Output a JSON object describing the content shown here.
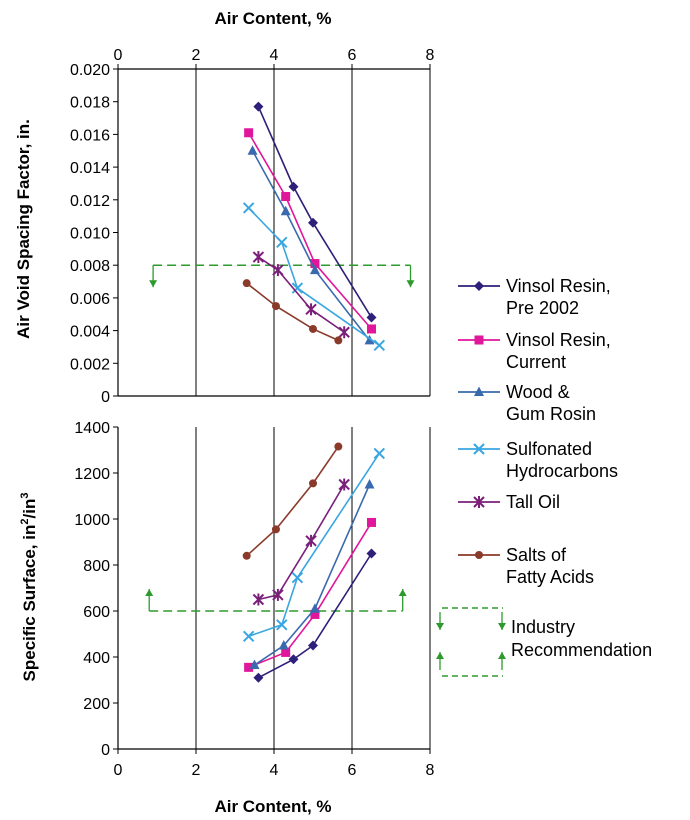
{
  "chart_data": [
    {
      "type": "line",
      "x_label_top": "Air Content, %",
      "ylabel": "Air Void Spacing Factor, in.",
      "xlim": [
        0,
        8
      ],
      "ylim": [
        0,
        0.02
      ],
      "x_ticks": [
        "0",
        "2",
        "4",
        "6",
        "8"
      ],
      "y_ticks": [
        "0",
        "0.002",
        "0.004",
        "0.006",
        "0.008",
        "0.010",
        "0.012",
        "0.014",
        "0.016",
        "0.018",
        "0.020"
      ],
      "grid": "vertical",
      "series": [
        {
          "name": "Vinsol Resin, Pre 2002",
          "color": "#2e1f7a",
          "marker": "diamond",
          "points": [
            [
              3.6,
              0.0177
            ],
            [
              4.5,
              0.0128
            ],
            [
              5.0,
              0.0106
            ],
            [
              6.5,
              0.0048
            ]
          ]
        },
        {
          "name": "Vinsol Resin, Current",
          "color": "#e0169b",
          "marker": "square",
          "points": [
            [
              3.35,
              0.0161
            ],
            [
              4.3,
              0.0122
            ],
            [
              5.05,
              0.0081
            ],
            [
              6.5,
              0.0041
            ]
          ]
        },
        {
          "name": "Wood & Gum Rosin",
          "color": "#3a6aae",
          "marker": "triangle",
          "points": [
            [
              3.45,
              0.015
            ],
            [
              4.3,
              0.0113
            ],
            [
              5.05,
              0.0077
            ],
            [
              6.45,
              0.0034
            ]
          ]
        },
        {
          "name": "Sulfonated Hydrocarbons",
          "color": "#3aa6e0",
          "marker": "x",
          "points": [
            [
              3.35,
              0.0115
            ],
            [
              4.2,
              0.0094
            ],
            [
              4.6,
              0.0066
            ],
            [
              6.7,
              0.0031
            ]
          ]
        },
        {
          "name": "Tall Oil",
          "color": "#7a1f7a",
          "marker": "star",
          "points": [
            [
              3.6,
              0.0085
            ],
            [
              4.1,
              0.0077
            ],
            [
              4.95,
              0.0053
            ],
            [
              5.8,
              0.0039
            ]
          ]
        },
        {
          "name": "Salts of Fatty Acids",
          "color": "#8a3a2a",
          "marker": "circle",
          "points": [
            [
              3.3,
              0.0069
            ],
            [
              4.05,
              0.0055
            ],
            [
              5.0,
              0.0041
            ],
            [
              5.65,
              0.0034
            ]
          ]
        }
      ],
      "recommendation": {
        "value": 0.008,
        "x_range": [
          0.9,
          7.5
        ],
        "direction": "below",
        "color": "#2e9a2e"
      }
    },
    {
      "type": "line",
      "xlabel": "Air Content, %",
      "ylabel": "Specific Surface, in²/in³",
      "xlim": [
        0,
        8
      ],
      "ylim": [
        0,
        1400
      ],
      "x_ticks": [
        "0",
        "2",
        "4",
        "6",
        "8"
      ],
      "y_ticks": [
        "0",
        "200",
        "400",
        "600",
        "800",
        "1000",
        "1200",
        "1400"
      ],
      "grid": "vertical",
      "series": [
        {
          "name": "Vinsol Resin, Pre 2002",
          "points": [
            [
              3.6,
              310
            ],
            [
              4.5,
              390
            ],
            [
              5.0,
              450
            ],
            [
              6.5,
              850
            ]
          ]
        },
        {
          "name": "Vinsol Resin, Current",
          "points": [
            [
              3.35,
              355
            ],
            [
              4.3,
              420
            ],
            [
              5.05,
              585
            ],
            [
              6.5,
              985
            ]
          ]
        },
        {
          "name": "Wood & Gum Rosin",
          "points": [
            [
              3.5,
              365
            ],
            [
              4.25,
              450
            ],
            [
              5.05,
              610
            ],
            [
              6.45,
              1150
            ]
          ]
        },
        {
          "name": "Sulfonated Hydrocarbons",
          "points": [
            [
              3.35,
              490
            ],
            [
              4.2,
              540
            ],
            [
              4.6,
              745
            ],
            [
              6.7,
              1285
            ]
          ]
        },
        {
          "name": "Tall Oil",
          "points": [
            [
              3.6,
              650
            ],
            [
              4.1,
              670
            ],
            [
              4.95,
              905
            ],
            [
              5.8,
              1150
            ]
          ]
        },
        {
          "name": "Salts of Fatty Acids",
          "points": [
            [
              3.3,
              840
            ],
            [
              4.05,
              955
            ],
            [
              5.0,
              1155
            ],
            [
              5.65,
              1315
            ]
          ]
        }
      ],
      "recommendation": {
        "value": 600,
        "x_range": [
          0.8,
          7.3
        ],
        "direction": "above",
        "color": "#2e9a2e"
      }
    }
  ],
  "axes_text": {
    "top_xlabel": "Air Content, %",
    "bottom_xlabel": "Air Content, %",
    "top_ylabel": "Air Void Spacing Factor, in.",
    "bottom_ylabel_main": "Specific Surface, in",
    "bottom_ylabel_sup1": "2",
    "bottom_ylabel_mid": "/in",
    "bottom_ylabel_sup2": "3"
  },
  "legend": {
    "items": [
      {
        "line1": "Vinsol Resin,",
        "line2": "Pre 2002"
      },
      {
        "line1": "Vinsol Resin,",
        "line2": "Current"
      },
      {
        "line1": "Wood &",
        "line2": "Gum Rosin"
      },
      {
        "line1": "Sulfonated",
        "line2": "Hydrocarbons"
      },
      {
        "line1": "Tall Oil",
        "line2": ""
      },
      {
        "line1": "Salts of",
        "line2": "Fatty Acids"
      }
    ],
    "recommendation_line1": "Industry",
    "recommendation_line2": "Recommendation"
  }
}
